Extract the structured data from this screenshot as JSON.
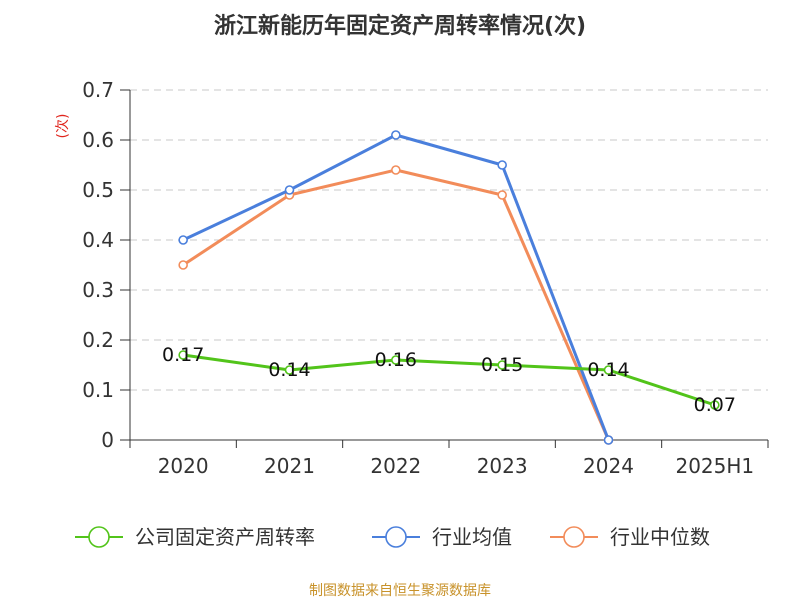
{
  "title": "浙江新能历年固定资产周转率情况(次)",
  "source": "制图数据来自恒生聚源数据库",
  "chart_data": {
    "type": "line",
    "title": "浙江新能历年固定资产周转率情况(次)",
    "ylabel": "(次)",
    "xlabel": "",
    "categories": [
      "2020",
      "2021",
      "2022",
      "2023",
      "2024",
      "2025H1"
    ],
    "ylim": [
      0,
      0.7
    ],
    "yticks": [
      "0",
      "0.1",
      "0.2",
      "0.3",
      "0.4",
      "0.5",
      "0.6",
      "0.7"
    ],
    "grid": true,
    "legend_position": "bottom",
    "series": [
      {
        "name": "公司固定资产周转率",
        "color": "#52c41a",
        "values": [
          0.17,
          0.14,
          0.16,
          0.15,
          0.14,
          0.07
        ],
        "labels": [
          "0.17",
          "0.14",
          "0.16",
          "0.15",
          "0.14",
          "0.07"
        ]
      },
      {
        "name": "行业均值",
        "color": "#4a7fdc",
        "values": [
          0.4,
          0.5,
          0.61,
          0.55,
          0,
          null
        ],
        "labels": []
      },
      {
        "name": "行业中位数",
        "color": "#f28c5a",
        "values": [
          0.35,
          0.49,
          0.54,
          0.49,
          0,
          null
        ],
        "labels": []
      }
    ]
  }
}
